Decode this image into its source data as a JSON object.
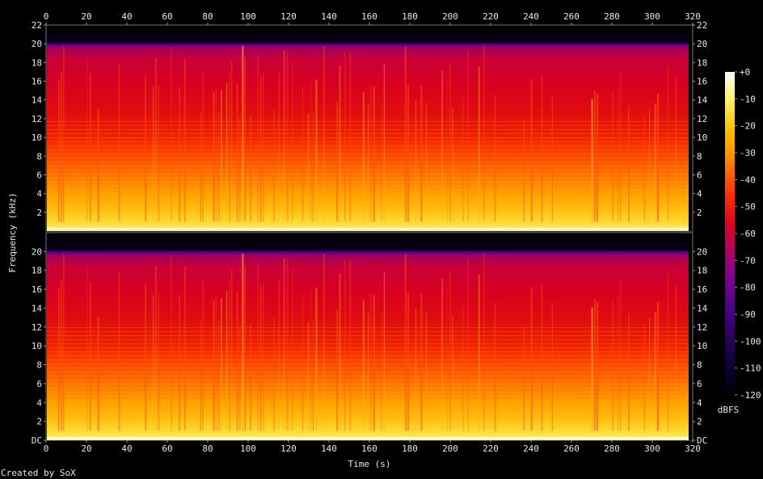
{
  "chart_data": {
    "type": "heatmap",
    "title": "",
    "xlabel": "Time (s)",
    "ylabel": "Frequency (kHz)",
    "xlim": [
      0,
      320
    ],
    "x_ticks": [
      0,
      20,
      40,
      60,
      80,
      100,
      120,
      140,
      160,
      180,
      200,
      220,
      240,
      260,
      280,
      300,
      320
    ],
    "ylim_khz": [
      0,
      22
    ],
    "y_ticks_top": [
      "2",
      "4",
      "6",
      "8",
      "10",
      "12",
      "14",
      "16",
      "18",
      "20",
      "22"
    ],
    "y_ticks_bottom": [
      "DC",
      "2",
      "4",
      "6",
      "8",
      "10",
      "12",
      "14",
      "16",
      "18",
      "20"
    ],
    "channels": 2,
    "audio_duration_s": 318,
    "content_cutoff_khz": 20,
    "colorbar": {
      "label": "dBFS",
      "range": [
        -120,
        0
      ],
      "ticks": [
        "+0",
        "-10",
        "-20",
        "-30",
        "-40",
        "-50",
        "-60",
        "-70",
        "-80",
        "-90",
        "-100",
        "-110",
        "-120"
      ]
    },
    "palette": [
      "#000000",
      "#1a0040",
      "#3b0078",
      "#6a00a0",
      "#a0007a",
      "#d80030",
      "#ff2000",
      "#ff6a00",
      "#ffb000",
      "#ffe040",
      "#ffffa0",
      "#ffffff"
    ]
  },
  "footer": {
    "credit": "Created by SoX"
  }
}
